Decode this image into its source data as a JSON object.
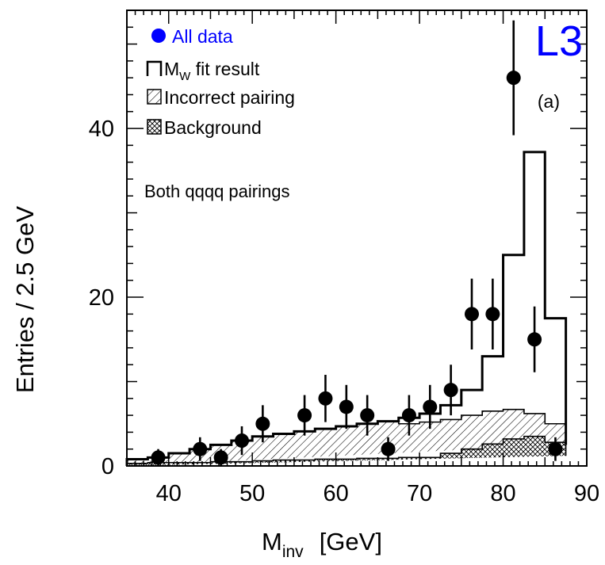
{
  "chart_data": {
    "type": "bar",
    "experiment_label": "L3",
    "panel_label": "(a)",
    "annotation": "Both qqqq pairings",
    "xlabel": "M",
    "xlabel_sub": "inv",
    "xlabel_unit": "[GeV]",
    "ylabel": "Entries / 2.5 GeV",
    "xlim": [
      35,
      90
    ],
    "ylim": [
      0,
      54
    ],
    "x_ticks": [
      40,
      50,
      60,
      70,
      80,
      90
    ],
    "y_ticks": [
      0,
      20,
      40
    ],
    "bin_width": 2.5,
    "legend": [
      {
        "key": "data",
        "label": "All data",
        "color": "#0000ff"
      },
      {
        "key": "fit",
        "label": "M",
        "sub": "W",
        "suffix": " fit result"
      },
      {
        "key": "incorrect",
        "label": "Incorrect pairing"
      },
      {
        "key": "background",
        "label": "Background"
      }
    ],
    "bin_edges": [
      35,
      37.5,
      40,
      42.5,
      45,
      47.5,
      50,
      52.5,
      55,
      57.5,
      60,
      62.5,
      65,
      67.5,
      70,
      72.5,
      75,
      77.5,
      80,
      82.5,
      85,
      87.5
    ],
    "series": [
      {
        "name": "MW fit result",
        "style": "step",
        "values": [
          0.8,
          1.0,
          1.5,
          2.0,
          2.5,
          3.0,
          3.5,
          3.8,
          4.1,
          4.4,
          4.7,
          5.0,
          5.3,
          5.7,
          6.2,
          7.2,
          9.0,
          13.0,
          25.0,
          37.2,
          17.5,
          2.5
        ]
      },
      {
        "name": "Incorrect pairing",
        "style": "hatch",
        "values": [
          0.8,
          1.0,
          1.5,
          2.0,
          2.5,
          3.0,
          3.5,
          3.8,
          4.1,
          4.4,
          4.7,
          5.0,
          5.3,
          5.0,
          5.2,
          5.5,
          6.0,
          6.5,
          6.7,
          6.2,
          5.0,
          2.5
        ]
      },
      {
        "name": "Background",
        "style": "crosshatch",
        "values": [
          0.3,
          0.4,
          0.4,
          0.4,
          0.5,
          0.5,
          0.6,
          0.7,
          0.7,
          0.8,
          0.8,
          0.9,
          0.9,
          1.0,
          1.0,
          1.5,
          2.0,
          2.6,
          3.2,
          3.5,
          2.8,
          1.2
        ]
      },
      {
        "name": "All data",
        "style": "points",
        "points": [
          {
            "x": 38.75,
            "y": 1,
            "err": 1.0
          },
          {
            "x": 43.75,
            "y": 2,
            "err": 1.4
          },
          {
            "x": 46.25,
            "y": 1,
            "err": 1.0
          },
          {
            "x": 48.75,
            "y": 3,
            "err": 1.7
          },
          {
            "x": 51.25,
            "y": 5,
            "err": 2.2
          },
          {
            "x": 56.25,
            "y": 6,
            "err": 2.4
          },
          {
            "x": 58.75,
            "y": 8,
            "err": 2.8
          },
          {
            "x": 61.25,
            "y": 7,
            "err": 2.6
          },
          {
            "x": 63.75,
            "y": 6,
            "err": 2.4
          },
          {
            "x": 66.25,
            "y": 2,
            "err": 1.4
          },
          {
            "x": 68.75,
            "y": 6,
            "err": 2.4
          },
          {
            "x": 71.25,
            "y": 7,
            "err": 2.6
          },
          {
            "x": 73.75,
            "y": 9,
            "err": 3.0
          },
          {
            "x": 76.25,
            "y": 18,
            "err": 4.2
          },
          {
            "x": 78.75,
            "y": 18,
            "err": 4.2
          },
          {
            "x": 81.25,
            "y": 46,
            "err": 6.8
          },
          {
            "x": 83.75,
            "y": 15,
            "err": 3.9
          },
          {
            "x": 86.25,
            "y": 2,
            "err": 1.4
          }
        ]
      }
    ]
  }
}
